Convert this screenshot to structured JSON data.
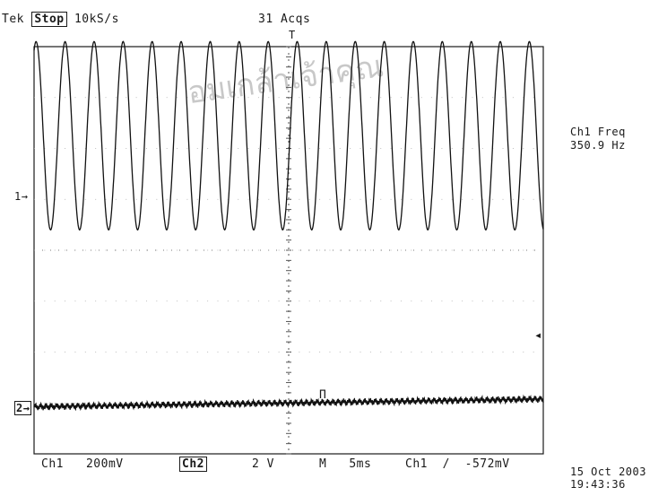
{
  "header": {
    "brand": "Tek",
    "run_state": "Stop",
    "sample_rate": "10kS/s",
    "acquisitions": "31 Acqs",
    "trigger_marker": "T"
  },
  "measurement": {
    "label": "Ch1 Freq",
    "value": "350.9 Hz"
  },
  "markers": {
    "ch1": "1→",
    "ch2": "2→",
    "trigger_level": "◂",
    "cursor": "Π"
  },
  "footer": {
    "ch1_label": "Ch1",
    "ch1_scale": "200mV",
    "ch2_label": "Ch2",
    "ch2_scale": "2 V",
    "time_label": "M",
    "time_scale": "5ms",
    "trigger_source": "Ch1",
    "trigger_slope": "/",
    "trigger_level": "-572mV"
  },
  "timestamp": {
    "date": "15 Oct 2003",
    "time": "19:43:36"
  },
  "watermark": "อมเกล้าเจ้าคุณ",
  "chart_data": {
    "type": "line",
    "x_divisions": 10,
    "y_divisions": 8,
    "series": [
      {
        "cycles": 17.55,
        "amplitude_div": 1.85,
        "offset_div": 2.25,
        "phase_deg": 65
      },
      {
        "cycles": 0,
        "amplitude_div": 0,
        "offset_div": -3.0,
        "phase_deg": 0
      }
    ]
  }
}
